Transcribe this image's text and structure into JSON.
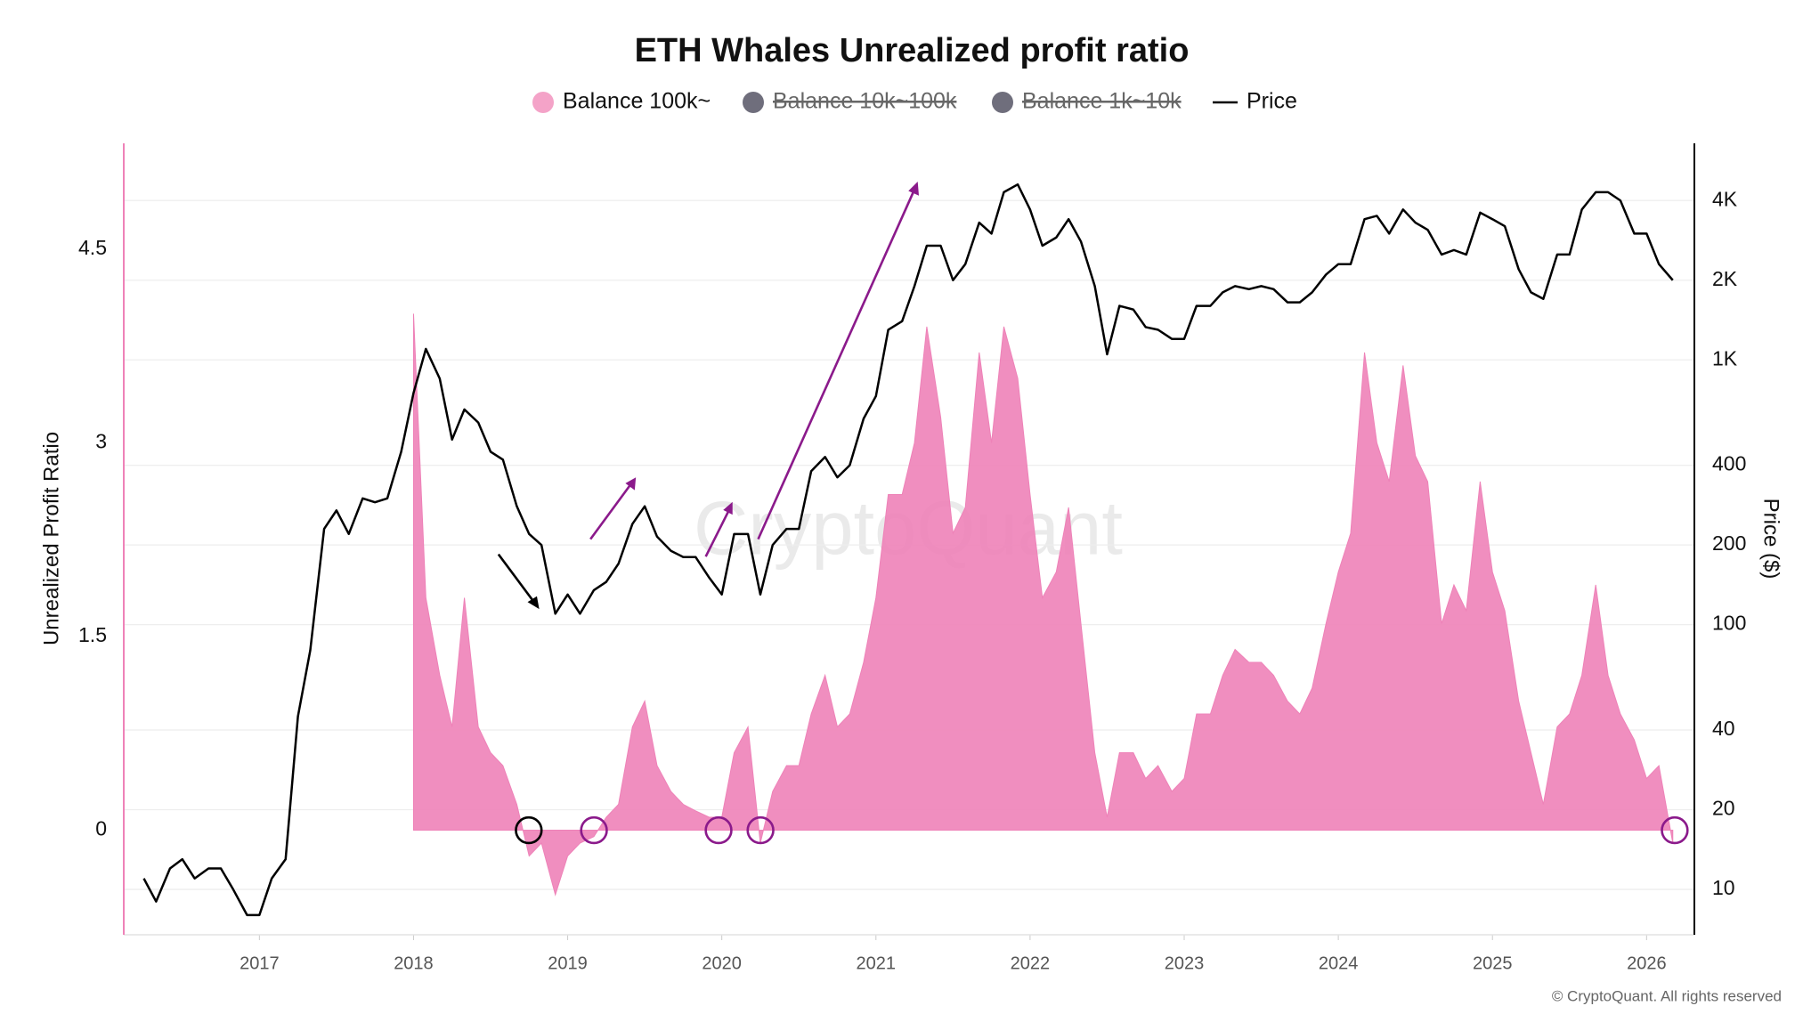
{
  "chart_data": {
    "type": "area",
    "title": "ETH Whales Unrealized profit ratio",
    "watermark": "CryptoQuant",
    "credit": "© CryptoQuant. All rights reserved",
    "y_label": "Unrealized Profit Ratio",
    "y2_label": "Price ($)",
    "xlim": [
      2016.12,
      2026.31
    ],
    "xticks": [
      2017,
      2018,
      2019,
      2020,
      2021,
      2022,
      2023,
      2024,
      2025,
      2026
    ],
    "ylim": [
      -0.81,
      5.32
    ],
    "yticks": [
      0,
      1.5,
      3,
      4.5
    ],
    "y2lim": [
      6.74,
      6577
    ],
    "y2scale": "log",
    "y2ticks": [
      10,
      20,
      40,
      100,
      200,
      400,
      {
        "value": 1000,
        "label": "1K"
      },
      {
        "value": 2000,
        "label": "2K"
      },
      {
        "value": 4000,
        "label": "4K"
      }
    ],
    "grid": "y2",
    "x": [
      2016.25,
      2016.33,
      2016.42,
      2016.5,
      2016.58,
      2016.67,
      2016.75,
      2016.83,
      2016.92,
      2017.0,
      2017.08,
      2017.17,
      2017.25,
      2017.33,
      2017.42,
      2017.5,
      2017.58,
      2017.67,
      2017.75,
      2017.83,
      2017.92,
      2018.0,
      2018.08,
      2018.17,
      2018.25,
      2018.33,
      2018.42,
      2018.5,
      2018.58,
      2018.67,
      2018.75,
      2018.83,
      2018.92,
      2019.0,
      2019.08,
      2019.17,
      2019.25,
      2019.33,
      2019.42,
      2019.5,
      2019.58,
      2019.67,
      2019.75,
      2019.83,
      2019.92,
      2020.0,
      2020.08,
      2020.17,
      2020.25,
      2020.33,
      2020.42,
      2020.5,
      2020.58,
      2020.67,
      2020.75,
      2020.83,
      2020.92,
      2021.0,
      2021.08,
      2021.17,
      2021.25,
      2021.33,
      2021.42,
      2021.5,
      2021.58,
      2021.67,
      2021.75,
      2021.83,
      2021.92,
      2022.0,
      2022.08,
      2022.17,
      2022.25,
      2022.33,
      2022.42,
      2022.5,
      2022.58,
      2022.67,
      2022.75,
      2022.83,
      2022.92,
      2023.0,
      2023.08,
      2023.17,
      2023.25,
      2023.33,
      2023.42,
      2023.5,
      2023.58,
      2023.67,
      2023.75,
      2023.83,
      2023.92,
      2024.0,
      2024.08,
      2024.17,
      2024.25,
      2024.33,
      2024.42,
      2024.5,
      2024.58,
      2024.67,
      2024.75,
      2024.83,
      2024.92,
      2025.0,
      2025.08,
      2025.17,
      2025.25,
      2025.33,
      2025.42,
      2025.5,
      2025.58,
      2025.67,
      2025.75,
      2025.83,
      2025.92,
      2026.0,
      2026.08,
      2026.17
    ],
    "series": [
      {
        "name": "Balance 100k~",
        "type": "area",
        "color": "#ee82b8",
        "visible": true,
        "values": [
          null,
          null,
          null,
          null,
          null,
          null,
          null,
          null,
          null,
          null,
          null,
          null,
          null,
          null,
          null,
          null,
          null,
          null,
          null,
          null,
          null,
          4.0,
          1.8,
          1.2,
          0.8,
          1.8,
          0.8,
          0.6,
          0.5,
          0.2,
          -0.2,
          -0.1,
          -0.5,
          -0.2,
          -0.1,
          -0.05,
          0.1,
          0.2,
          0.8,
          1.0,
          0.5,
          0.3,
          0.2,
          0.15,
          0.1,
          0.1,
          0.6,
          0.8,
          -0.1,
          0.3,
          0.5,
          0.5,
          0.9,
          1.2,
          0.8,
          0.9,
          1.3,
          1.8,
          2.6,
          2.6,
          3.0,
          3.9,
          3.2,
          2.3,
          2.5,
          3.7,
          3.0,
          3.9,
          3.5,
          2.6,
          1.8,
          2.0,
          2.5,
          1.6,
          0.6,
          0.1,
          0.6,
          0.6,
          0.4,
          0.5,
          0.3,
          0.4,
          0.9,
          0.9,
          1.2,
          1.4,
          1.3,
          1.3,
          1.2,
          1.0,
          0.9,
          1.1,
          1.6,
          2.0,
          2.3,
          3.7,
          3.0,
          2.7,
          3.6,
          2.9,
          2.7,
          1.6,
          1.9,
          1.7,
          2.7,
          2.0,
          1.7,
          1.0,
          0.6,
          0.2,
          0.8,
          0.9,
          1.2,
          1.9,
          1.2,
          0.9,
          0.7,
          0.4,
          0.5,
          -0.1
        ]
      },
      {
        "name": "Balance 10k~100k",
        "type": "area",
        "color": "#6f6e7c",
        "visible": false
      },
      {
        "name": "Balance 1k~10k",
        "type": "area",
        "color": "#6f6e7c",
        "visible": false
      },
      {
        "name": "Price",
        "type": "line",
        "axis": "y2",
        "color": "#000000",
        "visible": true,
        "values": [
          11,
          9,
          12,
          13,
          11,
          12,
          12,
          10,
          8,
          8,
          11,
          13,
          45,
          80,
          230,
          270,
          220,
          300,
          290,
          300,
          450,
          750,
          1100,
          850,
          500,
          650,
          580,
          450,
          420,
          280,
          220,
          200,
          110,
          130,
          110,
          135,
          145,
          170,
          240,
          280,
          215,
          190,
          180,
          180,
          150,
          130,
          220,
          220,
          130,
          200,
          230,
          230,
          380,
          430,
          360,
          400,
          600,
          730,
          1300,
          1400,
          1900,
          2700,
          2700,
          2000,
          2300,
          3300,
          3000,
          4300,
          4600,
          3700,
          2700,
          2900,
          3400,
          2800,
          1900,
          1050,
          1600,
          1550,
          1330,
          1300,
          1200,
          1200,
          1600,
          1600,
          1800,
          1900,
          1850,
          1900,
          1850,
          1650,
          1650,
          1800,
          2100,
          2300,
          2300,
          3400,
          3500,
          3000,
          3700,
          3300,
          3100,
          2500,
          2600,
          2500,
          3600,
          3400,
          3200,
          2200,
          1800,
          1700,
          2500,
          2500,
          3700,
          4300,
          4300,
          4000,
          3000,
          3000,
          2300,
          2000
        ]
      }
    ]
  }
}
